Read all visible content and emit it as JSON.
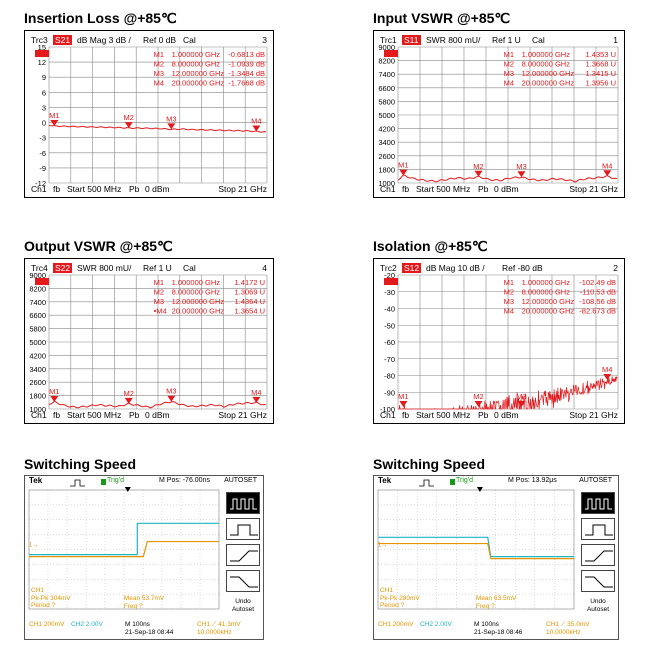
{
  "titles": {
    "insertion": "Insertion Loss @+85℃",
    "input_vswr": "Input VSWR @+85℃",
    "output_vswr": "Output VSWR @+85℃",
    "isolation": "Isolation @+85℃",
    "switch1": "Switching Speed",
    "switch2": "Switching Speed"
  },
  "chart_data": [
    {
      "type": "line",
      "trace": "Trc3",
      "param": "S21",
      "format": "dB Mag",
      "scale": "3 dB /",
      "ref": "Ref 0 dB",
      "cal": "Cal",
      "channel_index": "3",
      "y_ticks": [
        "15",
        "12",
        "9",
        "6",
        "3",
        "0",
        "-3",
        "-6",
        "-9",
        "-12"
      ],
      "markers": [
        {
          "name": "M1",
          "freq": "1.000000 GHz",
          "value": "-0.6813 dB",
          "label": "M1"
        },
        {
          "name": "M2",
          "freq": "8.000000 GHz",
          "value": "-1.0939 dB",
          "label": "M2"
        },
        {
          "name": "M3",
          "freq": "12.000000 GHz",
          "value": "-1.3484 dB",
          "label": "M3"
        },
        {
          "name": "M4",
          "freq": "20.000000 GHz",
          "value": "-1.7668 dB",
          "label": "M4"
        }
      ],
      "footer": {
        "ch": "Ch1",
        "fb": "fb",
        "start": "Start 500 MHz",
        "pb": "Pb",
        "pw": "0 dBm",
        "stop": "Stop 21 GHz"
      },
      "ylim": [
        -15,
        15
      ],
      "x": [
        0.5,
        1,
        2,
        3,
        4,
        5,
        6,
        7,
        8,
        9,
        10,
        11,
        12,
        13,
        14,
        15,
        16,
        17,
        18,
        19,
        20,
        21
      ],
      "y": [
        -0.5,
        -0.68,
        -0.75,
        -0.8,
        -0.85,
        -0.9,
        -0.95,
        -1.0,
        -1.09,
        -1.1,
        -1.15,
        -1.2,
        -1.35,
        -1.3,
        -1.4,
        -1.45,
        -1.5,
        -1.55,
        -1.6,
        -1.65,
        -1.77,
        -1.9
      ]
    },
    {
      "type": "line",
      "trace": "Trc1",
      "param": "S11",
      "format": "SWR",
      "scale": "800 mU/",
      "ref": "Ref 1 U",
      "cal": "Cal",
      "channel_index": "1",
      "y_ticks": [
        "9000",
        "8200",
        "7400",
        "6600",
        "5800",
        "5000",
        "4200",
        "3400",
        "2600",
        "1800",
        "1000"
      ],
      "markers": [
        {
          "name": "M1",
          "freq": "1.000000 GHz",
          "value": "1.4353 U",
          "label": "M1"
        },
        {
          "name": "M2",
          "freq": "8.000000 GHz",
          "value": "1.3668 U",
          "label": "M2"
        },
        {
          "name": "M3",
          "freq": "12.000000 GHz",
          "value": "1.3415 U",
          "label": "M3"
        },
        {
          "name": "M4",
          "freq": "20.000000 GHz",
          "value": "1.3956 U",
          "label": "M4"
        }
      ],
      "footer": {
        "ch": "Ch1",
        "fb": "fb",
        "start": "Start 500 MHz",
        "pb": "Pb",
        "pw": "0 dBm",
        "stop": "Stop 21 GHz"
      },
      "ylim": [
        1,
        9
      ],
      "x": [
        0.5,
        1,
        2,
        3,
        4,
        5,
        6,
        7,
        8,
        9,
        10,
        11,
        12,
        13,
        14,
        15,
        16,
        17,
        18,
        19,
        20,
        21
      ],
      "y": [
        1.2,
        1.44,
        1.25,
        1.15,
        1.1,
        1.2,
        1.3,
        1.25,
        1.37,
        1.2,
        1.15,
        1.3,
        1.34,
        1.2,
        1.15,
        1.25,
        1.2,
        1.1,
        1.25,
        1.3,
        1.4,
        1.2
      ]
    },
    {
      "type": "line",
      "trace": "Trc4",
      "param": "S22",
      "format": "SWR",
      "scale": "800 mU/",
      "ref": "Ref 1 U",
      "cal": "Cal",
      "channel_index": "4",
      "y_ticks": [
        "9000",
        "8200",
        "7400",
        "6600",
        "5800",
        "5000",
        "4200",
        "3400",
        "2600",
        "1800",
        "1000"
      ],
      "markers": [
        {
          "name": "M1",
          "freq": "1.000000 GHz",
          "value": "1.4172 U",
          "label": "M1"
        },
        {
          "name": "M2",
          "freq": "8.000000 GHz",
          "value": "1.3069 U",
          "label": "M2"
        },
        {
          "name": "M3",
          "freq": "12.000000 GHz",
          "value": "1.4364 U",
          "label": "M3"
        },
        {
          "name": "•M4",
          "freq": "20.000000 GHz",
          "value": "1.3654 U",
          "label": "M4"
        }
      ],
      "footer": {
        "ch": "Ch1",
        "fb": "fb",
        "start": "Start 500 MHz",
        "pb": "Pb",
        "pw": "0 dBm",
        "stop": "Stop 21 GHz"
      },
      "ylim": [
        1,
        9
      ],
      "x": [
        0.5,
        1,
        2,
        3,
        4,
        5,
        6,
        7,
        8,
        9,
        10,
        11,
        12,
        13,
        14,
        15,
        16,
        17,
        18,
        19,
        20,
        21
      ],
      "y": [
        1.3,
        1.42,
        1.2,
        1.1,
        1.15,
        1.25,
        1.2,
        1.15,
        1.31,
        1.2,
        1.1,
        1.3,
        1.44,
        1.25,
        1.15,
        1.2,
        1.25,
        1.15,
        1.3,
        1.35,
        1.37,
        1.2
      ]
    },
    {
      "type": "line",
      "trace": "Trc2",
      "param": "S12",
      "format": "dB Mag",
      "scale": "10 dB /",
      "ref": "Ref -80 dB",
      "cal": "",
      "channel_index": "2",
      "y_ticks": [
        "-20",
        "-30",
        "-40",
        "-50",
        "-60",
        "-70",
        "-80",
        "-90",
        "-100"
      ],
      "markers": [
        {
          "name": "M1",
          "freq": "1.000000 GHz",
          "value": "-102.49 dB",
          "label": "M1"
        },
        {
          "name": "M2",
          "freq": "8.000000 GHz",
          "value": "-110.53 dB",
          "label": "M2"
        },
        {
          "name": "M3",
          "freq": "12.000000 GHz",
          "value": "-108.56 dB",
          "label": "M3"
        },
        {
          "name": "M4",
          "freq": "20.000000 GHz",
          "value": "-82.673 dB",
          "label": "M4"
        }
      ],
      "footer": {
        "ch": "Ch1",
        "fb": "fb",
        "start": "Start 500 MHz",
        "pb": "Pb",
        "pw": "0 dBm",
        "stop": "Stop 21 GHz"
      },
      "ylim": [
        -120,
        -20
      ]
    }
  ],
  "scopes": [
    {
      "brand": "Tek",
      "trig": "Trig'd",
      "mpos": "M Pos: -76.00ns",
      "autoset": "AUTOSET",
      "undo": "Undo",
      "autoset2": "Autoset",
      "ch1_label": "CH1",
      "pkpk": "Pk-Pk 304mV",
      "period": "Period ?",
      "mean": "Mean 53.7mV",
      "freq": "Freq ?",
      "ch1_scale": "CH1 200mV",
      "ch2_scale": "CH2 2.00V",
      "timebase": "M 100ns",
      "date": "21-Sep-18 08:44",
      "trig_level": "CH1 ⟋ 41.3mV",
      "trig_freq": "10.0000kHz",
      "edge": "rise"
    },
    {
      "brand": "Tek",
      "trig": "Trig'd",
      "mpos": "M Pos: 13.92μs",
      "autoset": "AUTOSET",
      "undo": "Undo",
      "autoset2": "Autoset",
      "ch1_label": "CH1",
      "pkpk": "Pk-Pk 280mV",
      "period": "Period ?",
      "mean": "Mean 63.5mV",
      "freq": "Freq ?",
      "ch1_scale": "CH1 200mV",
      "ch2_scale": "CH2 2.00V",
      "timebase": "M 100ns",
      "date": "21-Sep-18 08:46",
      "trig_level": "CH1 ⟋ 35.0mV",
      "trig_freq": "10.0000kHz",
      "edge": "fall"
    }
  ]
}
